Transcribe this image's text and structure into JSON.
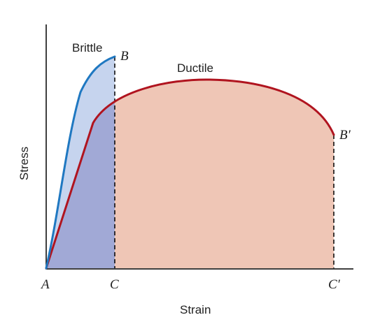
{
  "labels": {
    "y_axis": "Stress",
    "x_axis": "Strain",
    "brittle": "Brittle",
    "ductile": "Ductile",
    "point_a": "A",
    "point_b": "B",
    "point_b_prime": "B′",
    "point_c": "C",
    "point_c_prime": "C′"
  },
  "colors": {
    "brittle_curve": "#1f78c1",
    "brittle_fill": "#c6d4ee",
    "overlap_fill": "#a1a9d6",
    "ductile_curve": "#b0141f",
    "ductile_fill": "#efc6b6",
    "axis": "#000000",
    "dashed_line": "#000000"
  }
}
